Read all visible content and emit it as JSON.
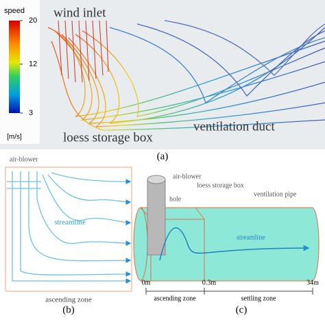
{
  "panel_a": {
    "colorbar": {
      "title": "speed",
      "ticks": [
        20,
        12,
        3
      ],
      "unit": "[m/s]"
    },
    "labels": [
      "wind inlet",
      "loess storage box",
      "ventilation duct"
    ],
    "caption": "(a)"
  },
  "panel_b": {
    "labels": [
      "air-blower",
      "streamline",
      "ascending zone"
    ],
    "caption": "(b)"
  },
  "panel_c": {
    "labels": [
      "air-blower",
      "hole",
      "loess storage box",
      "ventilation pipe",
      "streamline"
    ],
    "axis_labels": [
      "0m",
      "0.3m",
      "34m"
    ],
    "zones": [
      "ascending zone",
      "settling zone"
    ],
    "caption": "(c)"
  }
}
